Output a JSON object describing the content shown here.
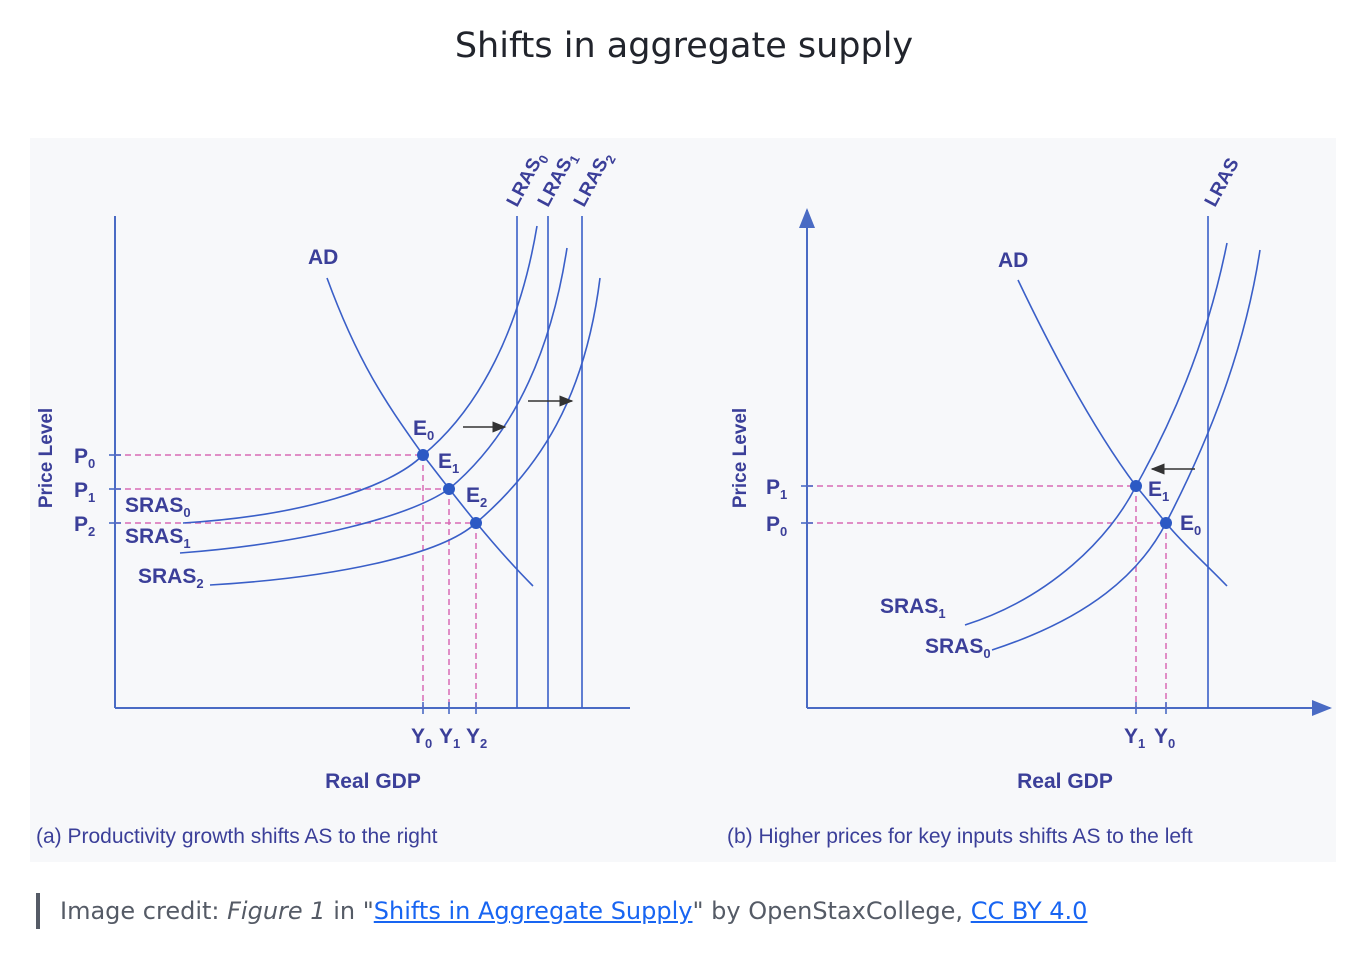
{
  "page": {
    "title": "Shifts in aggregate supply"
  },
  "panel_a": {
    "ylabel": "Price Level",
    "xlabel": "Real GDP",
    "caption": "(a) Productivity growth shifts AS to the right",
    "ad_label": "AD",
    "price_ticks": [
      {
        "main": "P",
        "sub": "0"
      },
      {
        "main": "P",
        "sub": "1"
      },
      {
        "main": "P",
        "sub": "2"
      }
    ],
    "gdp_ticks": [
      {
        "main": "Y",
        "sub": "0"
      },
      {
        "main": "Y",
        "sub": "1"
      },
      {
        "main": "Y",
        "sub": "2"
      }
    ],
    "sras_labels": [
      {
        "main": "SRAS",
        "sub": "0"
      },
      {
        "main": "SRAS",
        "sub": "1"
      },
      {
        "main": "SRAS",
        "sub": "2"
      }
    ],
    "lras_labels": [
      {
        "main": "LRAS",
        "sub": "0"
      },
      {
        "main": "LRAS",
        "sub": "1"
      },
      {
        "main": "LRAS",
        "sub": "2"
      }
    ],
    "equilibria": [
      {
        "main": "E",
        "sub": "0"
      },
      {
        "main": "E",
        "sub": "1"
      },
      {
        "main": "E",
        "sub": "2"
      }
    ]
  },
  "panel_b": {
    "ylabel": "Price Level",
    "xlabel": "Real GDP",
    "caption": "(b) Higher prices for key inputs shifts AS to the left",
    "ad_label": "AD",
    "lras_label": "LRAS",
    "price_ticks": [
      {
        "main": "P",
        "sub": "1"
      },
      {
        "main": "P",
        "sub": "0"
      }
    ],
    "gdp_ticks": [
      {
        "main": "Y",
        "sub": "1"
      },
      {
        "main": "Y",
        "sub": "0"
      }
    ],
    "sras_labels": [
      {
        "main": "SRAS",
        "sub": "1"
      },
      {
        "main": "SRAS",
        "sub": "0"
      }
    ],
    "equilibria": [
      {
        "main": "E",
        "sub": "1"
      },
      {
        "main": "E",
        "sub": "0"
      }
    ]
  },
  "credit": {
    "prefix": "Image credit: ",
    "figure": "Figure 1",
    "in_text": " in \"",
    "link_text": "Shifts in Aggregate Supply",
    "by_text": "\" by OpenStaxCollege, ",
    "license": "CC BY 4.0"
  },
  "colors": {
    "curve": "#3a5fc8",
    "axis": "#4a6bc4",
    "guide": "#d86bb5",
    "label": "#3b3f99",
    "point": "#2c59c4"
  }
}
